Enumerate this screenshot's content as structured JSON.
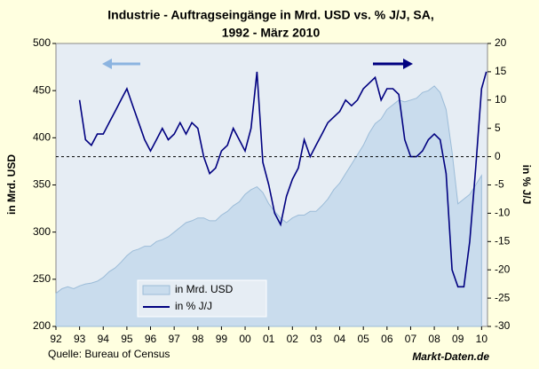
{
  "chart_data": {
    "type": "area-line",
    "title": [
      "Industrie - Auftragseingänge in Mrd. USD vs. % J/J, SA,",
      "1992 - März 2010"
    ],
    "y_label": "in Mrd. USD",
    "y2_label": "in % J/J",
    "source": "Quelle: Bureau of Census",
    "brand": "Markt-Daten.de",
    "xlim": [
      1992,
      2010.25
    ],
    "xticks": [
      {
        "value": 1992,
        "label": "92"
      },
      {
        "value": 1993,
        "label": "93"
      },
      {
        "value": 1994,
        "label": "94"
      },
      {
        "value": 1995,
        "label": "95"
      },
      {
        "value": 1996,
        "label": "96"
      },
      {
        "value": 1997,
        "label": "97"
      },
      {
        "value": 1998,
        "label": "98"
      },
      {
        "value": 1999,
        "label": "99"
      },
      {
        "value": 2000,
        "label": "00"
      },
      {
        "value": 2001,
        "label": "01"
      },
      {
        "value": 2002,
        "label": "02"
      },
      {
        "value": 2003,
        "label": "03"
      },
      {
        "value": 2004,
        "label": "04"
      },
      {
        "value": 2005,
        "label": "05"
      },
      {
        "value": 2006,
        "label": "06"
      },
      {
        "value": 2007,
        "label": "07"
      },
      {
        "value": 2008,
        "label": "08"
      },
      {
        "value": 2009,
        "label": "09"
      },
      {
        "value": 2010,
        "label": "10"
      }
    ],
    "ylim": [
      200,
      500
    ],
    "yticks": [
      200,
      250,
      300,
      350,
      400,
      450,
      500
    ],
    "y2lim": [
      -30,
      20
    ],
    "y2ticks": [
      -30,
      -25,
      -20,
      -15,
      -10,
      -5,
      0,
      5,
      10,
      15,
      20
    ],
    "series": [
      {
        "name": "in Mrd. USD",
        "kind": "area",
        "color": "#c9dced",
        "x": [
          1992,
          1992.25,
          1992.5,
          1992.75,
          1993,
          1993.25,
          1993.5,
          1993.75,
          1994,
          1994.25,
          1994.5,
          1994.75,
          1995,
          1995.25,
          1995.5,
          1995.75,
          1996,
          1996.25,
          1996.5,
          1996.75,
          1997,
          1997.25,
          1997.5,
          1997.75,
          1998,
          1998.25,
          1998.5,
          1998.75,
          1999,
          1999.25,
          1999.5,
          1999.75,
          2000,
          2000.25,
          2000.5,
          2000.75,
          2001,
          2001.25,
          2001.5,
          2001.75,
          2002,
          2002.25,
          2002.5,
          2002.75,
          2003,
          2003.25,
          2003.5,
          2003.75,
          2004,
          2004.25,
          2004.5,
          2004.75,
          2005,
          2005.25,
          2005.5,
          2005.75,
          2006,
          2006.25,
          2006.5,
          2006.75,
          2007,
          2007.25,
          2007.5,
          2007.75,
          2008,
          2008.25,
          2008.5,
          2008.75,
          2009,
          2009.25,
          2009.5,
          2009.75,
          2010
        ],
        "values": [
          235,
          240,
          242,
          240,
          243,
          245,
          246,
          248,
          252,
          258,
          262,
          268,
          275,
          280,
          282,
          285,
          285,
          290,
          292,
          295,
          300,
          305,
          310,
          312,
          315,
          315,
          312,
          312,
          318,
          322,
          328,
          332,
          340,
          345,
          348,
          342,
          330,
          322,
          315,
          310,
          315,
          318,
          318,
          322,
          322,
          328,
          335,
          345,
          352,
          362,
          372,
          382,
          392,
          405,
          415,
          420,
          430,
          435,
          440,
          438,
          440,
          442,
          448,
          450,
          455,
          448,
          430,
          385,
          330,
          335,
          340,
          350,
          360
        ]
      },
      {
        "name": "in % J/J",
        "kind": "line",
        "axis": "y2",
        "color": "#000080",
        "x": [
          1993,
          1993.25,
          1993.5,
          1993.75,
          1994,
          1994.25,
          1994.5,
          1994.75,
          1995,
          1995.25,
          1995.5,
          1995.75,
          1996,
          1996.25,
          1996.5,
          1996.75,
          1997,
          1997.25,
          1997.5,
          1997.75,
          1998,
          1998.25,
          1998.5,
          1998.75,
          1999,
          1999.25,
          1999.5,
          1999.75,
          2000,
          2000.25,
          2000.5,
          2000.75,
          2001,
          2001.25,
          2001.5,
          2001.75,
          2002,
          2002.25,
          2002.5,
          2002.75,
          2003,
          2003.25,
          2003.5,
          2003.75,
          2004,
          2004.25,
          2004.5,
          2004.75,
          2005,
          2005.25,
          2005.5,
          2005.75,
          2006,
          2006.25,
          2006.5,
          2006.75,
          2007,
          2007.25,
          2007.5,
          2007.75,
          2008,
          2008.25,
          2008.5,
          2008.75,
          2009,
          2009.25,
          2009.5,
          2009.75,
          2010,
          2010.2
        ],
        "values": [
          10,
          3,
          2,
          4,
          4,
          6,
          8,
          10,
          12,
          9,
          6,
          3,
          1,
          3,
          5,
          3,
          4,
          6,
          4,
          6,
          5,
          0,
          -3,
          -2,
          1,
          2,
          5,
          3,
          1,
          5,
          15,
          -1,
          -5,
          -10,
          -12,
          -7,
          -4,
          -2,
          3,
          0,
          2,
          4,
          6,
          7,
          8,
          10,
          9,
          10,
          12,
          13,
          14,
          10,
          12,
          12,
          11,
          3,
          0,
          0,
          1,
          3,
          4,
          3,
          -3,
          -20,
          -23,
          -23,
          -15,
          -2,
          12,
          15
        ]
      }
    ]
  }
}
